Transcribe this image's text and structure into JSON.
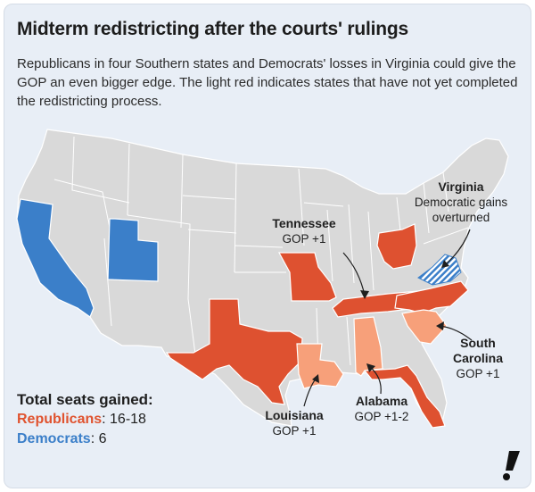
{
  "title": "Midterm redistricting after the courts' rulings",
  "subtitle": "Republicans in four Southern states and Democrats' losses in Virginia could give the GOP an even bigger edge. The light red indicates states that have not yet completed the redistricting process.",
  "colors": {
    "republican": "#de5130",
    "republican_pending": "#f7a07a",
    "democrat": "#3b7fc9",
    "base_state": "#d9d9d9",
    "background": "#e8eef6"
  },
  "annotations": {
    "tennessee": {
      "name": "Tennessee",
      "detail": "GOP +1"
    },
    "virginia": {
      "name": "Virginia",
      "detail": "Democratic gains overturned"
    },
    "south_carolina": {
      "name": "South Carolina",
      "detail": "GOP +1"
    },
    "alabama": {
      "name": "Alabama",
      "detail": "GOP +1-2"
    },
    "louisiana": {
      "name": "Louisiana",
      "detail": "GOP +1"
    }
  },
  "legend": {
    "heading": "Total seats gained:",
    "republicans_label": "Republicans",
    "republicans_value": ": 16-18",
    "democrats_label": "Democrats",
    "democrats_value": ": 6"
  },
  "states": {
    "republican_gain": [
      "Missouri",
      "Texas",
      "Ohio",
      "Tennessee",
      "North Carolina",
      "Florida"
    ],
    "republican_pending": [
      "Louisiana",
      "Alabama",
      "South Carolina"
    ],
    "democrat_gain": [
      "California",
      "Utah"
    ],
    "overturned": [
      "Virginia"
    ]
  }
}
